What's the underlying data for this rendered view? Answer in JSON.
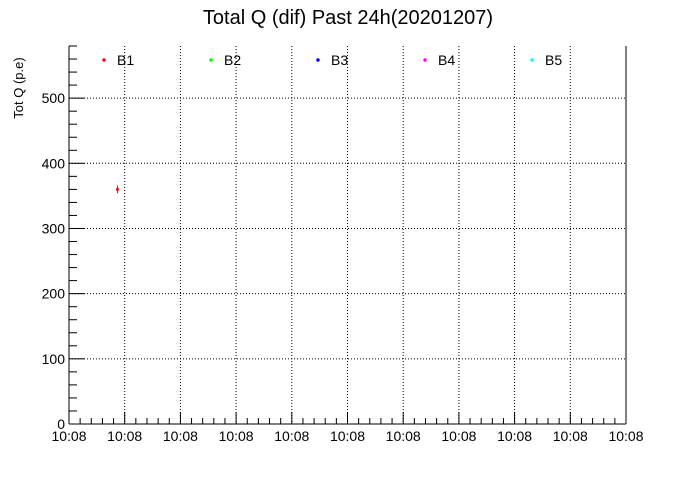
{
  "chart_data": {
    "type": "scatter",
    "title": "Total Q (dif) Past 24h(20201207)",
    "ylabel": "Tot Q (p.e)",
    "xlabel": "",
    "ylim": [
      0,
      580
    ],
    "y_ticks": [
      0,
      100,
      200,
      300,
      400,
      500
    ],
    "x_tick_labels": [
      "10:08",
      "10:08",
      "10:08",
      "10:08",
      "10:08",
      "10:08",
      "10:08",
      "10:08",
      "10:08",
      "10:08",
      "10:08"
    ],
    "grid": true,
    "legend_position": "top",
    "series": [
      {
        "name": "B1",
        "color": "#ff0000",
        "points": [
          {
            "x_frac": 0.087,
            "y": 360,
            "y_err": 6
          }
        ]
      },
      {
        "name": "B2",
        "color": "#00ff00",
        "points": []
      },
      {
        "name": "B3",
        "color": "#0000ff",
        "points": []
      },
      {
        "name": "B4",
        "color": "#ff00ff",
        "points": []
      },
      {
        "name": "B5",
        "color": "#00ffff",
        "points": []
      }
    ]
  }
}
